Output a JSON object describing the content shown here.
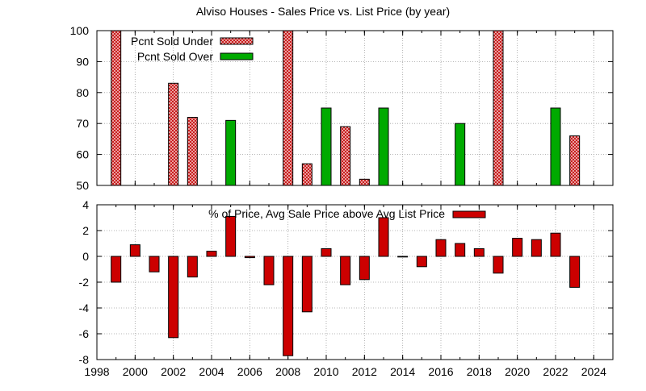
{
  "title": "Alviso Houses - Sales Price vs. List Price (by year)",
  "colors": {
    "under_fill": "#f4c0c0",
    "under_hatch": "#c00000",
    "over": "#00aa00",
    "pct": "#cc0000",
    "grid": "#a0a0a0",
    "axis": "#000000"
  },
  "chart_data": [
    {
      "type": "bar",
      "title": "Alviso Houses - Sales Price vs. List Price (by year)",
      "xlim": [
        1998,
        2025
      ],
      "ylim": [
        50,
        100
      ],
      "yticks": [
        50,
        60,
        70,
        80,
        90,
        100
      ],
      "grid": true,
      "legend_position": "top-left",
      "series": [
        {
          "name": "Pcnt Sold Under",
          "x": [
            1999,
            2002,
            2003,
            2008,
            2009,
            2011,
            2012,
            2019,
            2023
          ],
          "values": [
            100,
            83,
            72,
            100,
            57,
            69,
            52,
            100,
            66
          ]
        },
        {
          "name": "Pcnt Sold Over",
          "x": [
            2005,
            2010,
            2013,
            2017,
            2022
          ],
          "values": [
            71,
            75,
            75,
            70,
            75
          ]
        }
      ]
    },
    {
      "type": "bar",
      "xlim": [
        1998,
        2025
      ],
      "ylim": [
        -8,
        4
      ],
      "yticks": [
        -8,
        -6,
        -4,
        -2,
        0,
        2,
        4
      ],
      "xticks": [
        1998,
        2000,
        2002,
        2004,
        2006,
        2008,
        2010,
        2012,
        2014,
        2016,
        2018,
        2020,
        2022,
        2024
      ],
      "grid": true,
      "legend_position": "top-center",
      "series": [
        {
          "name": "% of Price, Avg Sale Price above Avg List Price",
          "x": [
            1999,
            2000,
            2001,
            2002,
            2003,
            2004,
            2005,
            2006,
            2007,
            2008,
            2009,
            2010,
            2011,
            2012,
            2013,
            2014,
            2015,
            2016,
            2017,
            2018,
            2019,
            2020,
            2021,
            2022,
            2023
          ],
          "values": [
            -2.0,
            0.9,
            -1.2,
            -6.3,
            -1.6,
            0.4,
            3.1,
            -0.1,
            -2.2,
            -7.7,
            -4.3,
            0.6,
            -2.2,
            -1.8,
            3.0,
            0.0,
            -0.8,
            1.3,
            1.0,
            0.6,
            -1.3,
            1.4,
            1.3,
            1.8,
            -2.4
          ]
        }
      ]
    }
  ]
}
